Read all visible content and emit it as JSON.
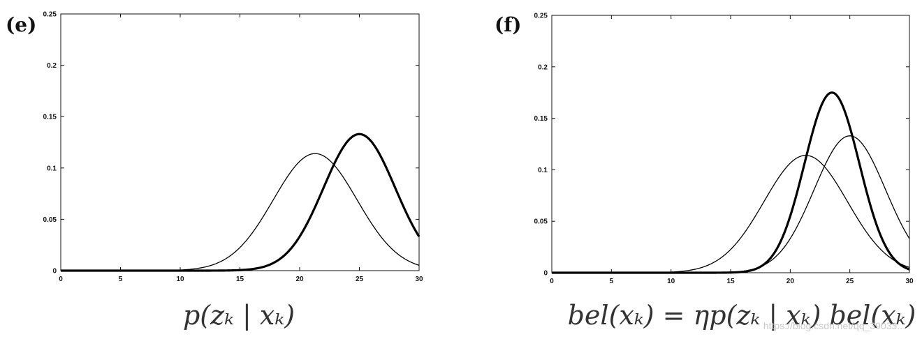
{
  "watermark": "https://blog.csdn.net/qq_39033...",
  "chart_data": [
    {
      "type": "line",
      "panel_label": "(e)",
      "caption": "p(zₖ | xₖ)",
      "xlim": [
        0,
        30
      ],
      "ylim": [
        0,
        0.25
      ],
      "xticks": [
        0,
        5,
        10,
        15,
        20,
        25,
        30
      ],
      "yticks": [
        0,
        0.05,
        0.1,
        0.15,
        0.2,
        0.25
      ],
      "xtick_labels": [
        "0",
        "5",
        "10",
        "15",
        "20",
        "25",
        "30"
      ],
      "ytick_labels": [
        "0",
        "0.05",
        "0.1",
        "0.15",
        "0.2",
        "0.25"
      ],
      "grid": false,
      "series": [
        {
          "style": "thin",
          "mean": 21.3,
          "sd": 3.5,
          "peak": 0.114
        },
        {
          "style": "bold",
          "mean": 25.0,
          "sd": 3.0,
          "peak": 0.133
        }
      ]
    },
    {
      "type": "line",
      "panel_label": "(f)",
      "caption": "bel(xₖ) = ηp(zₖ | xₖ) bel(xₖ)",
      "xlim": [
        0,
        30
      ],
      "ylim": [
        0,
        0.25
      ],
      "xticks": [
        0,
        5,
        10,
        15,
        20,
        25,
        30
      ],
      "yticks": [
        0,
        0.05,
        0.1,
        0.15,
        0.2,
        0.25
      ],
      "xtick_labels": [
        "0",
        "5",
        "10",
        "15",
        "20",
        "25",
        "30"
      ],
      "ytick_labels": [
        "0",
        "0.05",
        "0.1",
        "0.15",
        "0.2",
        "0.25"
      ],
      "grid": false,
      "series": [
        {
          "style": "thin",
          "mean": 21.3,
          "sd": 3.5,
          "peak": 0.114
        },
        {
          "style": "thin",
          "mean": 25.0,
          "sd": 3.0,
          "peak": 0.133
        },
        {
          "style": "bold",
          "mean": 23.5,
          "sd": 2.3,
          "peak": 0.175
        }
      ]
    }
  ]
}
